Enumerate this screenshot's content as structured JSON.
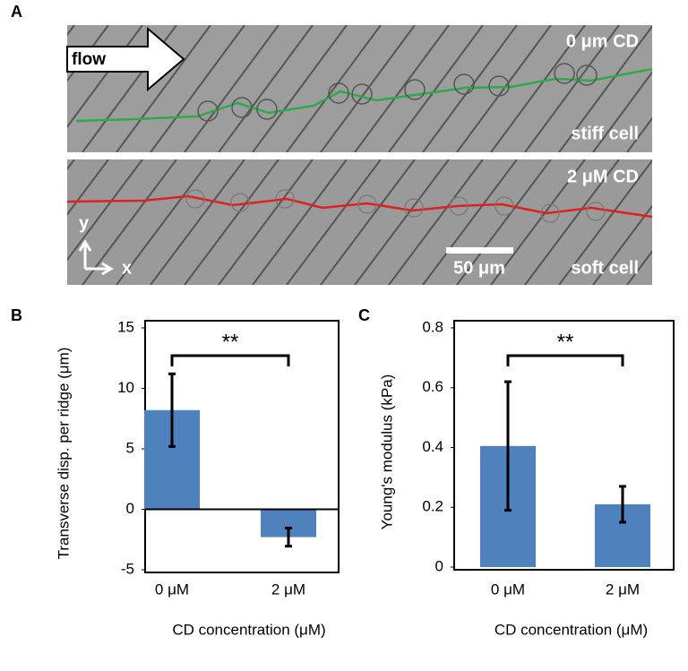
{
  "panel_a": {
    "label": "A",
    "flow": "flow",
    "top_condition": "0 μm CD",
    "top_cell": "stiff cell",
    "bottom_condition": "2 μM CD",
    "bottom_cell": "soft cell",
    "axis_y": "y",
    "axis_x": "x",
    "scale_bar": "50 μm"
  },
  "chart_data": [
    {
      "type": "bar",
      "panel_label": "B",
      "categories": [
        "0 μM",
        "2 μM"
      ],
      "values": [
        8.2,
        -2.3
      ],
      "errors": [
        3.0,
        0.75
      ],
      "color": "#4f81bd",
      "ylim": [
        -5,
        15
      ],
      "yticks": [
        -5,
        0,
        5,
        10,
        15
      ],
      "y_label": "Transverse disp. per ridge (μm)",
      "x_label": "CD concentration (μM)",
      "annotation": "**"
    },
    {
      "type": "bar",
      "panel_label": "C",
      "categories": [
        "0 μM",
        "2 μM"
      ],
      "values": [
        0.405,
        0.21
      ],
      "errors": [
        0.215,
        0.06
      ],
      "color": "#4f81bd",
      "ylim": [
        0,
        0.8
      ],
      "yticks": [
        0,
        0.2,
        0.4,
        0.6,
        0.8
      ],
      "y_label": "Young's modulus (kPa)",
      "x_label": "CD concentration (μM)",
      "annotation": "**"
    }
  ]
}
